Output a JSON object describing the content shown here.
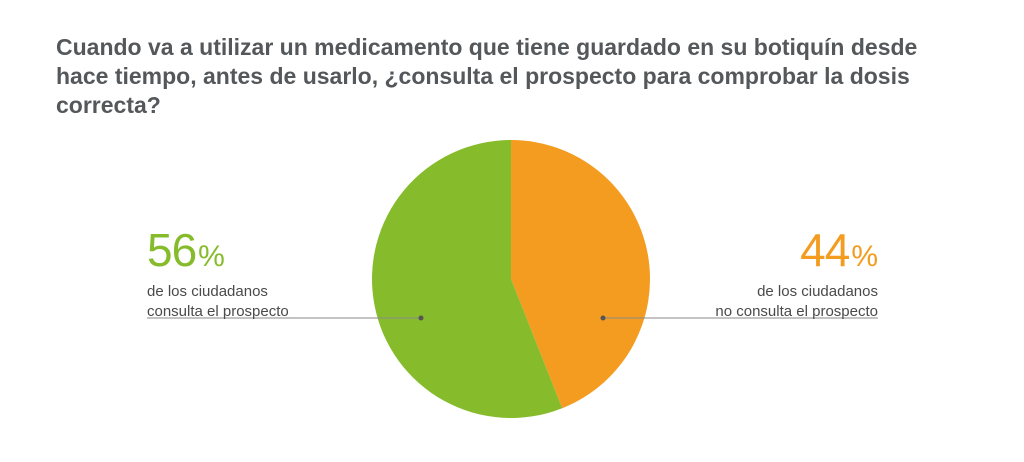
{
  "title_lines": [
    "Cuando va a utilizar un medicamento que tiene guardado en su botiquín desde",
    "hace tiempo, antes de usarlo, ¿consulta el prospecto para comprobar la dosis",
    "correcta?"
  ],
  "chart_data": {
    "type": "pie",
    "title": "Cuando va a utilizar un medicamento que tiene guardado en su botiquín desde hace tiempo, antes de usarlo, ¿consulta el prospecto para comprobar la dosis correcta?",
    "slices": [
      {
        "value": 44,
        "color": "#f39c1f",
        "label_pct": "44",
        "label_sym": "%",
        "desc": [
          "de los ciudadanos",
          "no consulta el prospecto"
        ]
      },
      {
        "value": 56,
        "color": "#86bc2b",
        "label_pct": "56",
        "label_sym": "%",
        "desc": [
          "de los ciudadanos",
          "consulta el prospecto"
        ]
      }
    ],
    "start_angle": "top, clockwise"
  },
  "callout_line_color": "#8a8a8a"
}
